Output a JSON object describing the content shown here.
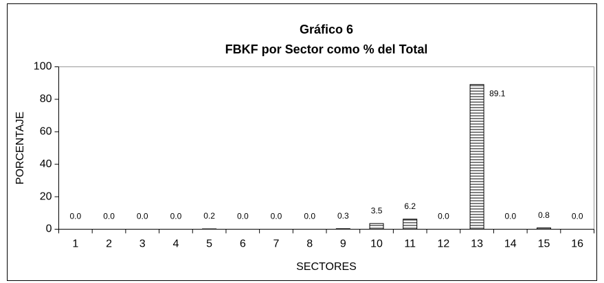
{
  "chart_data": {
    "type": "bar",
    "title": "Gráfico 6",
    "subtitle": "FBKF por Sector como % del Total",
    "x_label": "SECTORES",
    "y_label": "PORCENTAJE",
    "categories": [
      "1",
      "2",
      "3",
      "4",
      "5",
      "6",
      "7",
      "8",
      "9",
      "10",
      "11",
      "12",
      "13",
      "14",
      "15",
      "16"
    ],
    "values": [
      0,
      0,
      0,
      0,
      0.2,
      0,
      0,
      0,
      0.3,
      3.5,
      6.2,
      0,
      89.1,
      0,
      0.8,
      0
    ],
    "value_labels": [
      "0.0",
      "0.0",
      "0.0",
      "0.0",
      "0.2",
      "0.0",
      "0.0",
      "0.0",
      "0.3",
      "3.5",
      "6.2",
      "0.0",
      "89.1",
      "0.0",
      "0.8",
      "0.0"
    ],
    "color": "#000000",
    "ylim": [
      0,
      100
    ],
    "yticks": [
      0,
      20,
      40,
      60,
      80,
      100
    ],
    "grid": false
  }
}
